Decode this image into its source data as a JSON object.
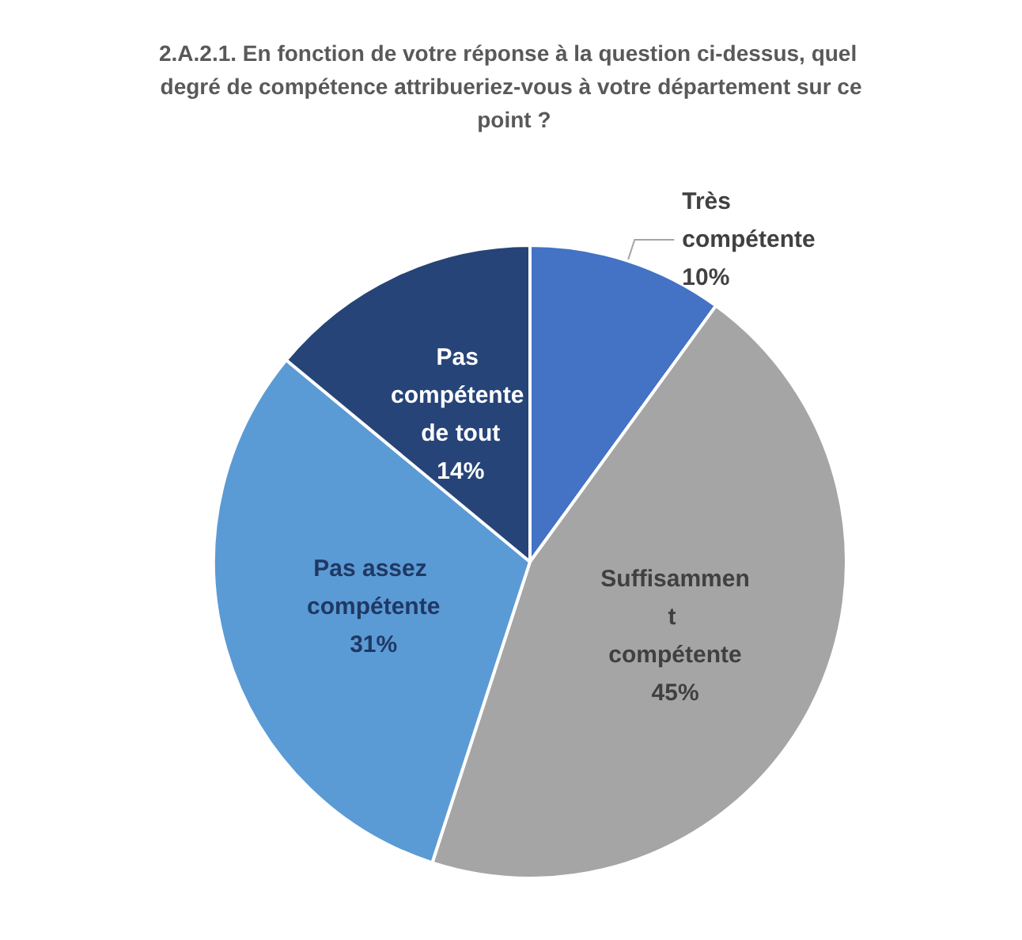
{
  "chart_data": {
    "type": "pie",
    "title": "2.A.2.1. En fonction de votre réponse à la question ci-dessus, quel degré de compétence attribueriez-vous à votre département sur ce point ?",
    "categories": [
      "Très compétente",
      "Suffisamment compétente",
      "Pas assez compétente",
      "Pas compétente de tout"
    ],
    "values": [
      10,
      45,
      31,
      14
    ],
    "colors": [
      "#4472c4",
      "#a5a5a5",
      "#5b9bd5",
      "#264478"
    ],
    "value_labels": [
      "10%",
      "45%",
      "31%",
      "14%"
    ],
    "legend": false
  }
}
